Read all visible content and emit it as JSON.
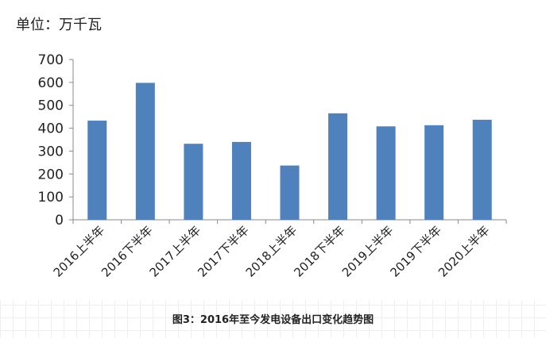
{
  "unit_label": "单位：万千瓦",
  "caption": "图3：2016年至今发电设备出口变化趋势图",
  "chart_data": {
    "type": "bar",
    "title": "",
    "xlabel": "",
    "ylabel": "",
    "ylim": [
      0,
      700
    ],
    "yticks": [
      0,
      100,
      200,
      300,
      400,
      500,
      600,
      700
    ],
    "grid": false,
    "bar_color": "#4f81bd",
    "categories": [
      "2016上半年",
      "2016下半年",
      "2017上半年",
      "2017下半年",
      "2018上半年",
      "2018下半年",
      "2019上半年",
      "2019下半年",
      "2020上半年"
    ],
    "values": [
      433,
      598,
      332,
      340,
      237,
      465,
      408,
      413,
      437
    ]
  }
}
